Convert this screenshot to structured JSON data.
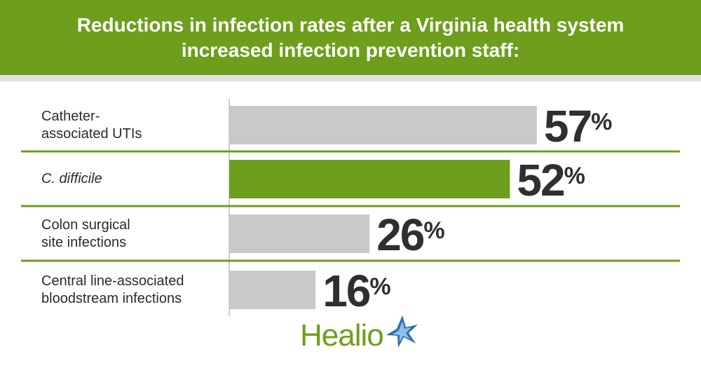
{
  "header": {
    "title_line1": "Reductions in infection rates after a Virginia health system",
    "title_line2": "increased infection prevention staff:"
  },
  "colors": {
    "header_bg": "#6d9e1c",
    "highlight_bar": "#6d9e1c",
    "default_bar": "#c9c9c9",
    "divider": "#6d9e1c",
    "value_text": "#2f2f2f"
  },
  "chart_data": {
    "type": "bar",
    "orientation": "horizontal",
    "categories": [
      [
        "Catheter-",
        "associated UTIs"
      ],
      [
        "C. difficile"
      ],
      [
        "Colon surgical",
        "site infections"
      ],
      [
        "Central line-associated",
        "bloodstream infections"
      ]
    ],
    "values": [
      57,
      52,
      26,
      16
    ],
    "value_labels": [
      "57",
      "52",
      "26",
      "16"
    ],
    "unit": "%",
    "highlight_index": 1,
    "italic_index": 1,
    "xlim": [
      0,
      100
    ],
    "grid": false
  },
  "logo": {
    "text": "Healio",
    "icon": "star-icon"
  }
}
